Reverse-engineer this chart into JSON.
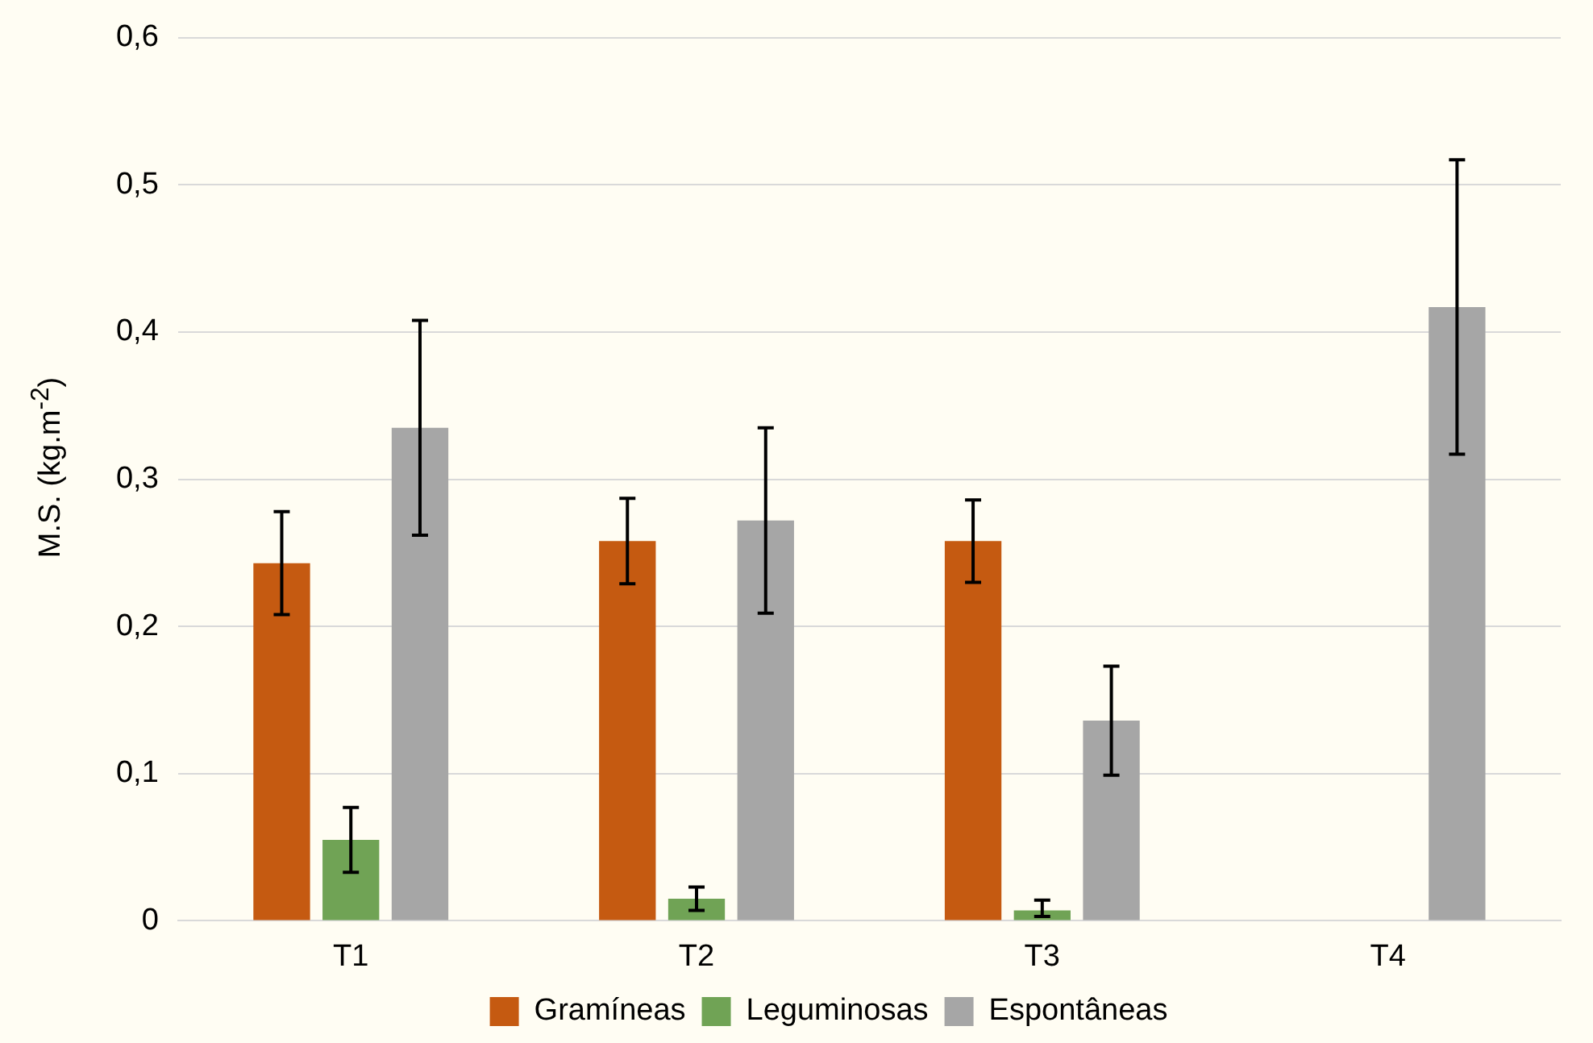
{
  "chart_data": {
    "type": "bar",
    "ylabel": "M.S. (kg.m$^{-2}$)",
    "categories": [
      "T1",
      "T2",
      "T3",
      "T4"
    ],
    "series": [
      {
        "name": "Gramíneas",
        "color": "#c55a11",
        "values": [
          0.243,
          0.258,
          0.258,
          null
        ],
        "errors": [
          0.035,
          0.029,
          0.028,
          null
        ]
      },
      {
        "name": "Leguminosas",
        "color": "#70a355",
        "values": [
          0.055,
          0.015,
          0.007,
          null
        ],
        "errors": [
          0.022,
          0.008,
          [
            0.003,
            0.014
          ],
          null
        ]
      },
      {
        "name": "Espontâneas",
        "color": "#a6a6a6",
        "values": [
          0.335,
          0.272,
          0.136,
          0.417
        ],
        "errors": [
          0.073,
          0.063,
          0.037,
          0.1
        ]
      }
    ],
    "ylim": [
      0,
      0.6
    ],
    "yticks": [
      {
        "value": 0,
        "label": "0"
      },
      {
        "value": 0.1,
        "label": "0,1"
      },
      {
        "value": 0.2,
        "label": "0,2"
      },
      {
        "value": 0.3,
        "label": "0,3"
      },
      {
        "value": 0.4,
        "label": "0,4"
      },
      {
        "value": 0.5,
        "label": "0,5"
      },
      {
        "value": 0.6,
        "label": "0,6"
      }
    ],
    "grid": "y",
    "legend": "bottom"
  }
}
